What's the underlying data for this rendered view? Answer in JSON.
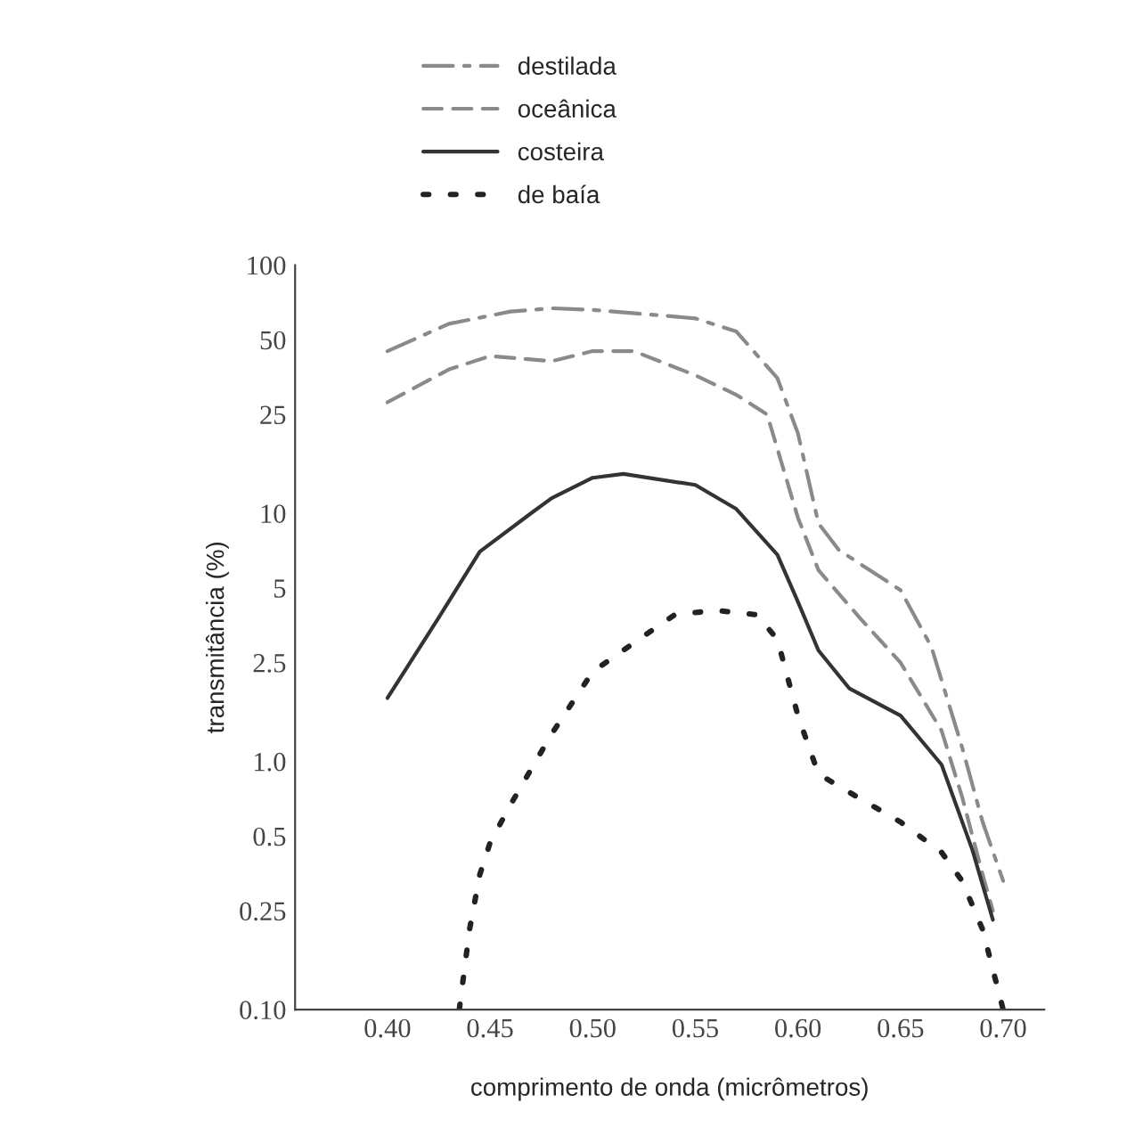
{
  "chart_data": {
    "type": "line",
    "xlabel": "comprimento de onda (micrômetros)",
    "ylabel": "transmitância (%)",
    "xlim": [
      0.355,
      0.72
    ],
    "xticks": [
      {
        "value": 0.4,
        "label": "0.40"
      },
      0.45,
      {
        "value": 0.5,
        "label": "0.50"
      },
      0.55,
      {
        "value": 0.6,
        "label": "0.60"
      },
      0.65,
      {
        "value": 0.7,
        "label": "0.70"
      }
    ],
    "ylim": [
      0.1,
      100
    ],
    "yticks": [
      {
        "value": 0.1,
        "label": "0.10"
      },
      0.25,
      0.5,
      {
        "value": 1,
        "label": "1.0"
      },
      2.5,
      5,
      10,
      25,
      50,
      100
    ],
    "log": true,
    "grid": false,
    "legend": "top",
    "marker": "none",
    "series": [
      {
        "name": "destilada",
        "color": "#8a8a8a",
        "line_style": "dashdot",
        "x": [
          0.4,
          0.43,
          0.46,
          0.48,
          0.5,
          0.53,
          0.55,
          0.57,
          0.59,
          0.6,
          0.61,
          0.62,
          0.65,
          0.665,
          0.68,
          0.69,
          0.7
        ],
        "values": [
          45,
          58,
          65,
          67,
          66,
          63,
          61,
          54,
          35,
          21,
          9.1,
          7.1,
          4.9,
          2.9,
          1.14,
          0.57,
          0.33
        ]
      },
      {
        "name": "oceânica",
        "color": "#8a8a8a",
        "line_style": "dashed",
        "x": [
          0.4,
          0.43,
          0.45,
          0.48,
          0.5,
          0.52,
          0.55,
          0.57,
          0.585,
          0.6,
          0.61,
          0.63,
          0.65,
          0.67,
          0.68,
          0.69,
          0.695
        ],
        "values": [
          28,
          38,
          43,
          41,
          45,
          45,
          36,
          30,
          25,
          9.6,
          5.9,
          3.8,
          2.5,
          1.33,
          0.72,
          0.35,
          0.25
        ]
      },
      {
        "name": "costeira",
        "color": "#333333",
        "line_style": "solid",
        "x": [
          0.4,
          0.425,
          0.445,
          0.47,
          0.48,
          0.5,
          0.515,
          0.55,
          0.57,
          0.59,
          0.6,
          0.61,
          0.625,
          0.65,
          0.67,
          0.685,
          0.695
        ],
        "values": [
          1.8,
          3.8,
          7.0,
          10,
          11.5,
          13.9,
          14.4,
          13,
          10.4,
          6.8,
          4.4,
          2.8,
          1.97,
          1.53,
          0.97,
          0.44,
          0.23
        ]
      },
      {
        "name": "de baía",
        "color": "#222222",
        "line_style": "dotted",
        "x": [
          0.435,
          0.44,
          0.445,
          0.45,
          0.46,
          0.47,
          0.48,
          0.5,
          0.52,
          0.54,
          0.56,
          0.58,
          0.59,
          0.6,
          0.61,
          0.63,
          0.65,
          0.67,
          0.68,
          0.69,
          0.7
        ],
        "values": [
          0.1,
          0.21,
          0.35,
          0.47,
          0.67,
          0.93,
          1.29,
          2.3,
          3.0,
          3.9,
          4.06,
          3.9,
          3.1,
          1.53,
          0.89,
          0.71,
          0.57,
          0.43,
          0.33,
          0.21,
          0.1
        ]
      }
    ]
  }
}
